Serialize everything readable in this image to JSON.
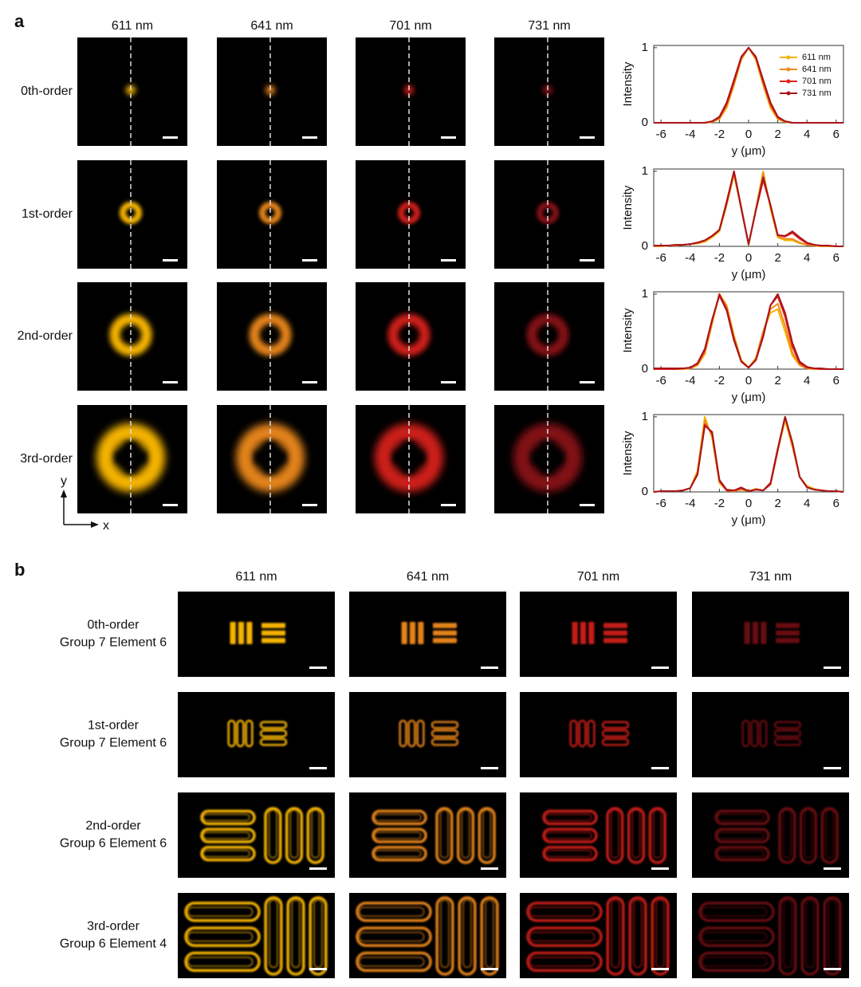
{
  "panel_labels": [
    "a",
    "b"
  ],
  "panel_a": {
    "wavelengths": [
      "611 nm",
      "641 nm",
      "701 nm",
      "731 nm"
    ],
    "orders": [
      "0th-order",
      "1st-order",
      "2nd-order",
      "3rd-order"
    ],
    "axes": {
      "x": "x",
      "y": "y"
    }
  },
  "panel_b": {
    "wavelengths": [
      "611 nm",
      "641 nm",
      "701 nm",
      "731 nm"
    ],
    "rows": [
      {
        "order": "0th-order",
        "target": "Group 7 Element 6"
      },
      {
        "order": "1st-order",
        "target": "Group 7 Element 6"
      },
      {
        "order": "2nd-order",
        "target": "Group 6 Element 6"
      },
      {
        "order": "3rd-order",
        "target": "Group 6 Element 4"
      }
    ]
  },
  "chart_data": [
    {
      "type": "line",
      "xlabel": "y (μm)",
      "ylabel": "Intensity",
      "xlim": [
        -6.5,
        6.5
      ],
      "ylim": [
        0,
        1.03
      ],
      "xticks": [
        -6,
        -4,
        -2,
        0,
        2,
        4,
        6
      ],
      "yticks": [
        0,
        1
      ],
      "legend": "upper right",
      "x": [
        -6.5,
        -6,
        -5.5,
        -5,
        -4.5,
        -4,
        -3.5,
        -3,
        -2.5,
        -2,
        -1.5,
        -1,
        -0.5,
        0,
        0.5,
        1,
        1.5,
        2,
        2.5,
        3,
        3.5,
        4,
        4.5,
        5,
        5.5,
        6,
        6.5
      ],
      "series": [
        {
          "name": "611 nm",
          "color": "#f5b400",
          "values": [
            0,
            0,
            0,
            0,
            0,
            0,
            0,
            0,
            0.01,
            0.05,
            0.2,
            0.5,
            0.84,
            1,
            0.84,
            0.5,
            0.2,
            0.05,
            0.01,
            0,
            0,
            0,
            0,
            0,
            0,
            0,
            0
          ]
        },
        {
          "name": "641 nm",
          "color": "#f08a1a",
          "values": [
            0,
            0,
            0,
            0,
            0,
            0,
            0,
            0,
            0.01,
            0.06,
            0.22,
            0.52,
            0.85,
            1,
            0.85,
            0.52,
            0.22,
            0.06,
            0.01,
            0,
            0,
            0,
            0,
            0,
            0,
            0,
            0
          ]
        },
        {
          "name": "701 nm",
          "color": "#e0201a",
          "values": [
            0,
            0,
            0,
            0,
            0,
            0,
            0,
            0,
            0.02,
            0.07,
            0.25,
            0.55,
            0.87,
            1,
            0.87,
            0.55,
            0.25,
            0.07,
            0.02,
            0,
            0,
            0,
            0,
            0,
            0,
            0,
            0
          ]
        },
        {
          "name": "731 nm",
          "color": "#a8151a",
          "values": [
            0,
            0,
            0,
            0,
            0,
            0,
            0,
            0,
            0.02,
            0.08,
            0.27,
            0.57,
            0.88,
            1,
            0.88,
            0.57,
            0.27,
            0.08,
            0.02,
            0,
            0,
            0,
            0,
            0,
            0,
            0,
            0
          ]
        }
      ]
    },
    {
      "type": "line",
      "xlabel": "y (μm)",
      "ylabel": "Intensity",
      "xlim": [
        -6.5,
        6.5
      ],
      "ylim": [
        0,
        1.03
      ],
      "xticks": [
        -6,
        -4,
        -2,
        0,
        2,
        4,
        6
      ],
      "yticks": [
        0,
        1
      ],
      "x": [
        -6.5,
        -6,
        -5.5,
        -5,
        -4.5,
        -4,
        -3.5,
        -3,
        -2.5,
        -2,
        -1.5,
        -1,
        -0.5,
        0,
        0.5,
        1,
        1.5,
        2,
        2.5,
        3,
        3.5,
        4,
        4.5,
        5,
        5.5,
        6,
        6.5
      ],
      "series": [
        {
          "color": "#f5b400",
          "values": [
            0,
            0,
            0.01,
            0.01,
            0.02,
            0.03,
            0.04,
            0.06,
            0.12,
            0.2,
            0.55,
            0.95,
            0.5,
            0.02,
            0.5,
            1,
            0.5,
            0.12,
            0.08,
            0.08,
            0.04,
            0.02,
            0.01,
            0,
            0,
            0,
            0
          ]
        },
        {
          "color": "#f08a1a",
          "values": [
            0,
            0,
            0.01,
            0.01,
            0.02,
            0.03,
            0.04,
            0.07,
            0.13,
            0.21,
            0.57,
            0.97,
            0.5,
            0.02,
            0.5,
            0.98,
            0.52,
            0.13,
            0.1,
            0.1,
            0.05,
            0.02,
            0.01,
            0,
            0,
            0,
            0
          ]
        },
        {
          "color": "#e0201a",
          "values": [
            0.01,
            0.01,
            0.01,
            0.02,
            0.02,
            0.03,
            0.05,
            0.08,
            0.14,
            0.22,
            0.6,
            1,
            0.52,
            0.03,
            0.48,
            0.88,
            0.55,
            0.15,
            0.13,
            0.18,
            0.1,
            0.04,
            0.02,
            0.01,
            0.01,
            0,
            0
          ]
        },
        {
          "color": "#a8151a",
          "values": [
            0.01,
            0.01,
            0.01,
            0.02,
            0.02,
            0.03,
            0.05,
            0.08,
            0.14,
            0.22,
            0.58,
            1,
            0.5,
            0.03,
            0.48,
            0.92,
            0.55,
            0.15,
            0.14,
            0.2,
            0.12,
            0.05,
            0.02,
            0.01,
            0.01,
            0,
            0
          ]
        }
      ]
    },
    {
      "type": "line",
      "xlabel": "y (μm)",
      "ylabel": "Intensity",
      "xlim": [
        -6.5,
        6.5
      ],
      "ylim": [
        0,
        1.03
      ],
      "xticks": [
        -6,
        -4,
        -2,
        0,
        2,
        4,
        6
      ],
      "yticks": [
        0,
        1
      ],
      "x": [
        -6.5,
        -6,
        -5.5,
        -5,
        -4.5,
        -4,
        -3.5,
        -3,
        -2.5,
        -2,
        -1.5,
        -1,
        -0.5,
        0,
        0.5,
        1,
        1.5,
        2,
        2.5,
        3,
        3.5,
        4,
        4.5,
        5,
        5.5,
        6,
        6.5
      ],
      "series": [
        {
          "color": "#f5b400",
          "values": [
            0,
            0,
            0,
            0,
            0,
            0.01,
            0.05,
            0.2,
            0.6,
            1,
            0.85,
            0.45,
            0.12,
            0.02,
            0.15,
            0.5,
            0.75,
            0.8,
            0.5,
            0.18,
            0.05,
            0.01,
            0,
            0,
            0,
            0,
            0
          ]
        },
        {
          "color": "#f08a1a",
          "values": [
            0,
            0,
            0,
            0,
            0,
            0.01,
            0.06,
            0.22,
            0.62,
            1,
            0.83,
            0.43,
            0.11,
            0.02,
            0.14,
            0.5,
            0.8,
            0.87,
            0.58,
            0.22,
            0.06,
            0.01,
            0,
            0,
            0,
            0,
            0
          ]
        },
        {
          "color": "#e0201a",
          "values": [
            0,
            0,
            0,
            0,
            0.01,
            0.02,
            0.07,
            0.25,
            0.65,
            1,
            0.8,
            0.4,
            0.1,
            0.02,
            0.12,
            0.45,
            0.85,
            0.97,
            0.7,
            0.3,
            0.08,
            0.02,
            0.01,
            0,
            0,
            0,
            0
          ]
        },
        {
          "color": "#a8151a",
          "values": [
            0.01,
            0.01,
            0.01,
            0.01,
            0.01,
            0.02,
            0.08,
            0.27,
            0.66,
            0.98,
            0.78,
            0.38,
            0.1,
            0.02,
            0.12,
            0.43,
            0.85,
            1,
            0.75,
            0.35,
            0.1,
            0.03,
            0.01,
            0.01,
            0,
            0,
            0
          ]
        }
      ]
    },
    {
      "type": "line",
      "xlabel": "y (μm)",
      "ylabel": "Intensity",
      "xlim": [
        -6.5,
        6.5
      ],
      "ylim": [
        0,
        1.03
      ],
      "xticks": [
        -6,
        -4,
        -2,
        0,
        2,
        4,
        6
      ],
      "yticks": [
        0,
        1
      ],
      "x": [
        -6.5,
        -6,
        -5.5,
        -5,
        -4.5,
        -4,
        -3.5,
        -3,
        -2.5,
        -2,
        -1.5,
        -1,
        -0.5,
        0,
        0.5,
        1,
        1.5,
        2,
        2.5,
        3,
        3.5,
        4,
        4.5,
        5,
        5.5,
        6,
        6.5
      ],
      "series": [
        {
          "color": "#f5b400",
          "values": [
            0,
            0.01,
            0.01,
            0.01,
            0.02,
            0.05,
            0.28,
            1,
            0.72,
            0.12,
            0.02,
            0.01,
            0.03,
            0.01,
            0.04,
            0.02,
            0.1,
            0.55,
            0.95,
            0.6,
            0.2,
            0.08,
            0.04,
            0.02,
            0.01,
            0.01,
            0
          ]
        },
        {
          "color": "#f08a1a",
          "values": [
            0,
            0.01,
            0.01,
            0.01,
            0.02,
            0.05,
            0.26,
            0.95,
            0.75,
            0.13,
            0.02,
            0.01,
            0.03,
            0.01,
            0.04,
            0.02,
            0.1,
            0.55,
            1,
            0.62,
            0.2,
            0.07,
            0.03,
            0.02,
            0.01,
            0.01,
            0
          ]
        },
        {
          "color": "#e0201a",
          "values": [
            0,
            0.01,
            0.01,
            0.01,
            0.02,
            0.05,
            0.24,
            0.9,
            0.78,
            0.15,
            0.02,
            0.02,
            0.05,
            0.01,
            0.03,
            0.02,
            0.1,
            0.56,
            1,
            0.65,
            0.2,
            0.06,
            0.03,
            0.02,
            0.01,
            0.01,
            0
          ]
        },
        {
          "color": "#a8151a",
          "values": [
            0,
            0.01,
            0.01,
            0.01,
            0.02,
            0.05,
            0.23,
            0.88,
            0.8,
            0.16,
            0.03,
            0.02,
            0.06,
            0.01,
            0.03,
            0.02,
            0.12,
            0.58,
            1,
            0.66,
            0.2,
            0.06,
            0.03,
            0.02,
            0.01,
            0.01,
            0
          ]
        }
      ]
    }
  ]
}
